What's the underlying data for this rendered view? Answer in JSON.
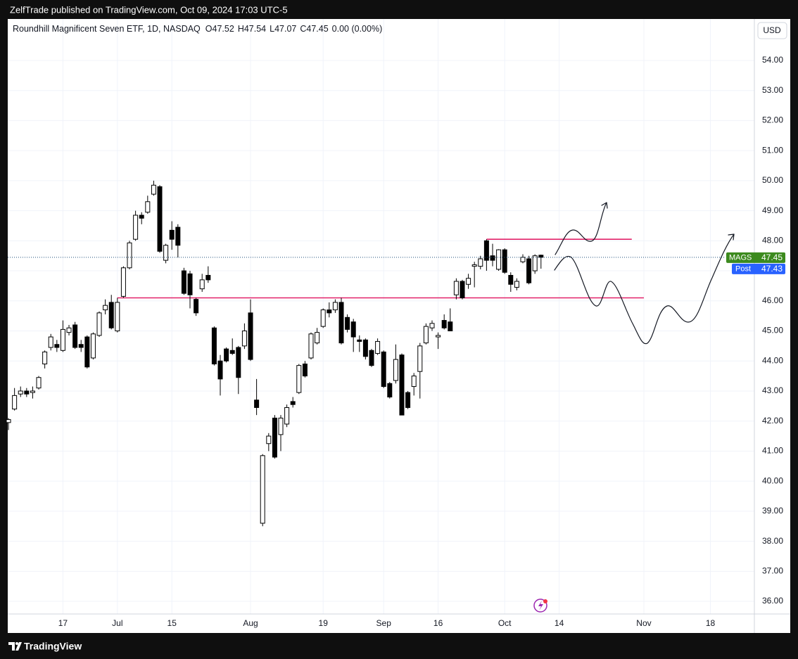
{
  "top_bar": "ZelfTrade published on TradingView.com, Oct 09, 2024 17:03 UTC-5",
  "footer": "TradingView",
  "chart_data": {
    "type": "candlestick",
    "title": "Roundhill Magnificent Seven ETF, 1D, NASDAQ",
    "ohlc_labels": [
      "O",
      "H",
      "L",
      "C"
    ],
    "change": "0.00 (0.00%)",
    "currency": "USD",
    "symbol": "MAGS",
    "post_label": "Post",
    "post_price": 47.43,
    "x": [
      0,
      1,
      2,
      3,
      4,
      5,
      6,
      7,
      8,
      9,
      10,
      11,
      12,
      13,
      14,
      15,
      16,
      17,
      18,
      19,
      20,
      21,
      22,
      23,
      24,
      25,
      26,
      27,
      28,
      29,
      30,
      31,
      32,
      33,
      34,
      35,
      36,
      37,
      38,
      39,
      40,
      41,
      42,
      43,
      44,
      45,
      46,
      47,
      48,
      49,
      50,
      51,
      52,
      53,
      54,
      55,
      56,
      57,
      58,
      59,
      60,
      61,
      62,
      63,
      64,
      65,
      66,
      67,
      68,
      69,
      70,
      71,
      72,
      73,
      74,
      75,
      76,
      77,
      78,
      79,
      80,
      81,
      82,
      83,
      84,
      85,
      86,
      87,
      88
    ],
    "open": [
      41.95,
      42.4,
      42.9,
      43.0,
      42.95,
      43.1,
      43.9,
      44.45,
      44.55,
      44.35,
      44.95,
      45.2,
      44.55,
      44.8,
      44.1,
      44.85,
      45.7,
      45.95,
      45.0,
      46.15,
      47.1,
      48.05,
      48.85,
      48.95,
      49.55,
      49.8,
      47.35,
      48.35,
      48.45,
      47.0,
      46.9,
      46.05,
      46.4,
      46.85,
      45.1,
      44.0,
      44.4,
      44.35,
      44.45,
      44.5,
      45.6,
      42.7,
      38.6,
      41.25,
      42.1,
      41.55,
      41.9,
      42.65,
      42.95,
      43.9,
      44.1,
      44.6,
      45.15,
      45.7,
      45.7,
      45.95,
      45.45,
      45.3,
      44.7,
      44.7,
      44.35,
      44.25,
      44.3,
      43.25,
      43.35,
      44.2,
      42.95,
      43.15,
      43.65,
      44.6,
      45.1,
      44.8,
      45.35,
      45.3,
      46.2,
      46.65,
      46.55,
      47.15,
      47.15,
      48.0,
      47.5,
      47.05,
      47.7,
      46.85,
      46.45,
      47.3,
      47.4,
      47.0,
      47.52
    ],
    "high": [
      42.1,
      43.1,
      43.15,
      43.1,
      43.15,
      43.5,
      44.35,
      44.9,
      44.7,
      45.35,
      45.2,
      45.3,
      44.7,
      44.85,
      44.95,
      45.65,
      46.05,
      46.2,
      46.1,
      47.15,
      48.0,
      49.0,
      48.95,
      49.5,
      50.0,
      49.85,
      47.9,
      48.65,
      48.55,
      47.1,
      47.0,
      46.1,
      46.9,
      47.15,
      45.15,
      44.2,
      44.45,
      44.75,
      44.5,
      45.25,
      46.05,
      43.4,
      40.9,
      41.6,
      42.2,
      42.2,
      42.55,
      42.8,
      43.9,
      44.0,
      44.95,
      45.1,
      45.75,
      45.95,
      46.05,
      46.1,
      45.55,
      45.4,
      44.85,
      44.75,
      44.4,
      44.75,
      44.35,
      43.3,
      44.55,
      44.25,
      43.0,
      43.6,
      44.6,
      45.25,
      45.35,
      44.95,
      45.55,
      45.75,
      46.75,
      46.7,
      46.9,
      47.3,
      47.5,
      48.05,
      47.9,
      47.72,
      47.75,
      46.95,
      46.75,
      47.55,
      47.5,
      47.55,
      47.54
    ],
    "low": [
      41.7,
      42.35,
      42.8,
      42.8,
      42.75,
      43.05,
      43.75,
      44.35,
      44.3,
      44.3,
      44.85,
      44.4,
      44.3,
      43.75,
      44.05,
      44.8,
      45.55,
      45.05,
      44.95,
      46.1,
      47.05,
      48.0,
      48.55,
      48.9,
      49.5,
      47.6,
      47.25,
      47.7,
      47.45,
      46.2,
      45.75,
      45.5,
      46.3,
      46.6,
      43.85,
      42.85,
      43.95,
      44.2,
      42.9,
      44.4,
      44.0,
      42.2,
      38.5,
      41.0,
      40.75,
      41.0,
      41.8,
      42.45,
      42.9,
      43.45,
      44.05,
      44.55,
      45.1,
      45.45,
      45.6,
      44.55,
      44.95,
      44.3,
      44.3,
      44.05,
      43.8,
      44.2,
      43.1,
      42.75,
      43.25,
      42.2,
      42.4,
      42.85,
      42.75,
      44.55,
      45.0,
      44.4,
      45.05,
      45.0,
      46.05,
      46.05,
      46.4,
      46.45,
      47.05,
      47.0,
      47.15,
      47.0,
      46.9,
      46.3,
      46.35,
      47.25,
      46.55,
      46.9,
      47.07
    ],
    "close": [
      42.05,
      42.85,
      43.0,
      42.9,
      43.0,
      43.45,
      44.3,
      44.8,
      44.45,
      45.05,
      45.1,
      44.45,
      44.45,
      43.8,
      44.9,
      45.6,
      45.85,
      45.1,
      45.95,
      47.1,
      47.93,
      48.85,
      48.75,
      49.3,
      49.85,
      47.65,
      47.85,
      48.05,
      47.85,
      46.25,
      46.2,
      45.6,
      46.7,
      46.7,
      43.9,
      43.4,
      44.0,
      44.25,
      43.45,
      45.0,
      44.05,
      42.45,
      40.85,
      41.5,
      40.8,
      42.1,
      42.45,
      42.55,
      43.85,
      43.5,
      44.9,
      44.95,
      45.7,
      45.6,
      45.95,
      44.6,
      45.05,
      44.8,
      44.65,
      44.15,
      43.85,
      44.65,
      43.15,
      42.8,
      44.05,
      42.2,
      42.45,
      43.5,
      44.5,
      45.15,
      45.25,
      44.85,
      45.1,
      45.0,
      46.65,
      46.1,
      46.75,
      47.2,
      47.4,
      47.35,
      47.35,
      47.7,
      46.95,
      46.55,
      46.65,
      47.45,
      46.6,
      47.5,
      47.45
    ],
    "up_color": "#ffffff",
    "down_color": "#000000",
    "levels": [
      {
        "value": 48.05,
        "x": [
          79,
          103
        ]
      },
      {
        "value": 46.1,
        "x": [
          18,
          105
        ]
      }
    ],
    "level_color": "#e2236a",
    "xlim": [
      -0.12,
      123.26
    ],
    "xticks": [
      {
        "value": 9,
        "label": "17"
      },
      {
        "value": 18,
        "label": "Jul"
      },
      {
        "value": 27,
        "label": "15"
      },
      {
        "value": 40,
        "label": "Aug"
      },
      {
        "value": 52,
        "label": "19"
      },
      {
        "value": 62,
        "label": "Sep"
      },
      {
        "value": 71,
        "label": "16"
      },
      {
        "value": 82,
        "label": "Oct"
      },
      {
        "value": 91,
        "label": "14"
      },
      {
        "value": 105,
        "label": "Nov"
      },
      {
        "value": 116,
        "label": "18"
      }
    ],
    "ylim": [
      35.58,
      55.38
    ],
    "yticks": [
      {
        "value": 36,
        "label": "36.00"
      },
      {
        "value": 37,
        "label": "37.00"
      },
      {
        "value": 38,
        "label": "38.00"
      },
      {
        "value": 39,
        "label": "39.00"
      },
      {
        "value": 40,
        "label": "40.00"
      },
      {
        "value": 41,
        "label": "41.00"
      },
      {
        "value": 42,
        "label": "42.00"
      },
      {
        "value": 43,
        "label": "43.00"
      },
      {
        "value": 44,
        "label": "44.00"
      },
      {
        "value": 45,
        "label": "45.00"
      },
      {
        "value": 46,
        "label": "46.00"
      },
      {
        "value": 47,
        "label": "47.00"
      },
      {
        "value": 48,
        "label": "48.00"
      },
      {
        "value": 49,
        "label": "49.00"
      },
      {
        "value": 50,
        "label": "50.00"
      },
      {
        "value": 51,
        "label": "51.00"
      },
      {
        "value": 52,
        "label": "52.00"
      },
      {
        "value": 53,
        "label": "53.00"
      },
      {
        "value": 54,
        "label": "54.00"
      }
    ],
    "grid": true
  }
}
